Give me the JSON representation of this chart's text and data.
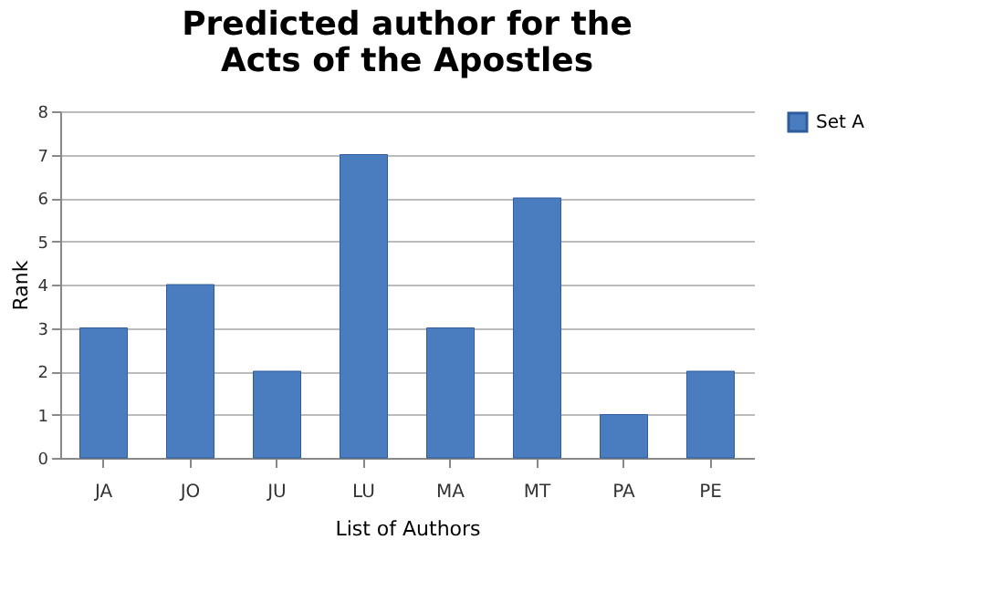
{
  "chart_data": {
    "type": "bar",
    "title": "Predicted author for the\nActs of the Apostles",
    "xlabel": "List of Authors",
    "ylabel": "Rank",
    "categories": [
      "JA",
      "JO",
      "JU",
      "LU",
      "MA",
      "MT",
      "PA",
      "PE"
    ],
    "series": [
      {
        "name": "Set A",
        "color": "#4a7cc0",
        "values": [
          3,
          4,
          2,
          7,
          3,
          6,
          1,
          2
        ]
      }
    ],
    "ylim": [
      0,
      8
    ],
    "yticks": [
      0,
      1,
      2,
      3,
      4,
      5,
      6,
      7,
      8
    ],
    "grid": "y",
    "legend": "right"
  }
}
